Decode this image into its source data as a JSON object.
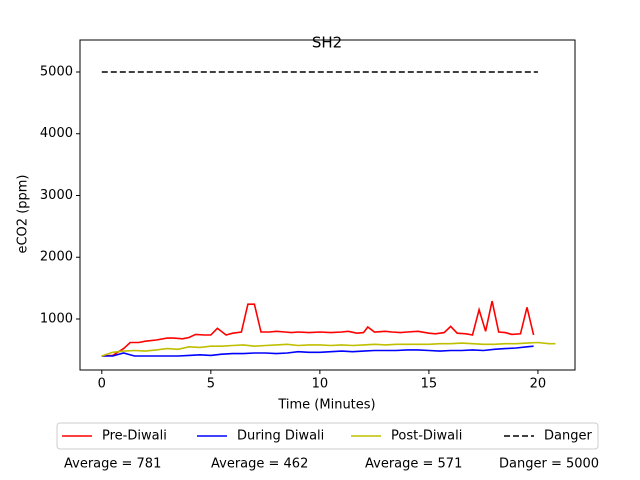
{
  "chart_data": {
    "type": "line",
    "title": "SH2",
    "xlabel": "Time (Minutes)",
    "ylabel": "eCO2 (ppm)",
    "xlim": [
      -1.0,
      21.7
    ],
    "ylim": [
      174,
      5518
    ],
    "xticks": [
      0,
      5,
      10,
      15,
      20
    ],
    "yticks": [
      1000,
      2000,
      3000,
      4000,
      5000
    ],
    "legend": "below",
    "series": [
      {
        "name": "Pre-Diwali",
        "color": "#ff0000",
        "linestyle": "solid",
        "x": [
          0,
          0.5,
          1,
          1.3,
          1.7,
          2,
          2.5,
          3,
          3.3,
          3.7,
          4,
          4.3,
          4.7,
          5,
          5.3,
          5.7,
          6,
          6.4,
          6.7,
          7,
          7.3,
          7.7,
          8,
          8.4,
          8.7,
          9,
          9.5,
          10,
          10.5,
          11,
          11.3,
          11.7,
          12,
          12.2,
          12.5,
          13,
          13.3,
          13.7,
          14,
          14.5,
          15,
          15.3,
          15.7,
          16,
          16.3,
          16.7,
          17,
          17.3,
          17.6,
          17.9,
          18.2,
          18.5,
          18.8,
          19.2,
          19.5,
          19.8
        ],
        "values": [
          400,
          410,
          520,
          620,
          620,
          640,
          660,
          690,
          690,
          680,
          700,
          750,
          740,
          740,
          850,
          740,
          770,
          790,
          1240,
          1240,
          790,
          790,
          800,
          790,
          780,
          790,
          780,
          790,
          780,
          790,
          800,
          770,
          780,
          870,
          790,
          800,
          790,
          780,
          790,
          800,
          770,
          760,
          780,
          880,
          770,
          760,
          740,
          1150,
          800,
          1290,
          790,
          780,
          750,
          760,
          1190,
          740
        ]
      },
      {
        "name": "During Diwali",
        "color": "#0000ff",
        "linestyle": "solid",
        "x": [
          0,
          0.5,
          1,
          1.5,
          2,
          2.5,
          3,
          3.5,
          4,
          4.5,
          5,
          5.5,
          6,
          6.5,
          7,
          7.5,
          8,
          8.5,
          9,
          9.5,
          10,
          10.5,
          11,
          11.5,
          12,
          12.5,
          13,
          13.5,
          14,
          14.5,
          15,
          15.5,
          16,
          16.5,
          17,
          17.5,
          18,
          18.5,
          19,
          19.5,
          19.8
        ],
        "values": [
          400,
          400,
          450,
          400,
          400,
          400,
          400,
          400,
          410,
          420,
          410,
          430,
          440,
          440,
          450,
          450,
          440,
          450,
          470,
          460,
          460,
          470,
          480,
          470,
          480,
          490,
          490,
          490,
          500,
          500,
          490,
          480,
          490,
          490,
          500,
          490,
          510,
          520,
          530,
          550,
          560
        ]
      },
      {
        "name": "Post-Diwali",
        "color": "#bfbf00",
        "linestyle": "solid",
        "x": [
          0,
          0.5,
          1,
          1.5,
          2,
          2.5,
          3,
          3.5,
          4,
          4.5,
          5,
          5.5,
          6,
          6.5,
          7,
          7.5,
          8,
          8.5,
          9,
          9.5,
          10,
          10.5,
          11,
          11.5,
          12,
          12.5,
          13,
          13.5,
          14,
          14.5,
          15,
          15.5,
          16,
          16.5,
          17,
          17.5,
          18,
          18.5,
          19,
          19.5,
          20,
          20.5,
          20.8
        ],
        "values": [
          400,
          460,
          480,
          490,
          480,
          500,
          520,
          510,
          550,
          540,
          560,
          560,
          570,
          580,
          560,
          570,
          580,
          590,
          570,
          580,
          580,
          570,
          580,
          570,
          580,
          590,
          580,
          590,
          590,
          590,
          590,
          600,
          600,
          610,
          600,
          590,
          590,
          600,
          600,
          610,
          620,
          600,
          600
        ]
      },
      {
        "name": "Danger",
        "color": "#000000",
        "linestyle": "dashed",
        "x": [
          0,
          20
        ],
        "values": [
          5000,
          5000
        ]
      }
    ],
    "annotations": [
      "Average = 781",
      "Average = 462",
      "Average = 571",
      "Danger = 5000"
    ]
  }
}
